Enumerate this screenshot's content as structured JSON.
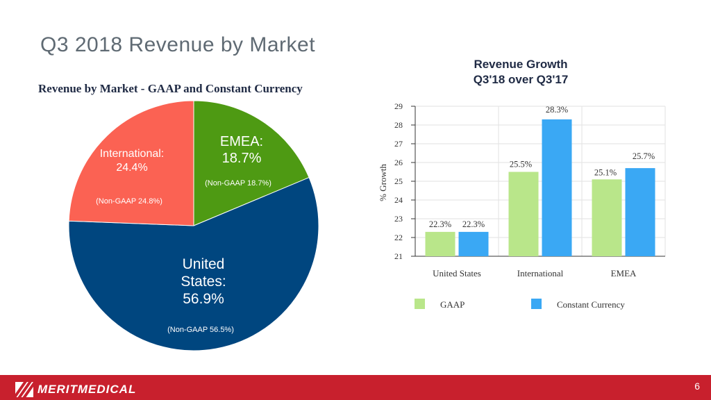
{
  "slide": {
    "title": "Q3 2018 Revenue by Market",
    "page_number": "6",
    "logo_text": "MERITMEDICAL"
  },
  "colors": {
    "united_states": "#00467f",
    "international": "#fb6253",
    "emea": "#4e9a13",
    "gaap": "#b9e68a",
    "constant_currency": "#3aa8f4",
    "footer": "#c8202d"
  },
  "chart_data": [
    {
      "type": "pie",
      "title": "Revenue by Market - GAAP and Constant Currency",
      "slices": [
        {
          "name": "EMEA",
          "value": 18.7,
          "label_line1": "EMEA:",
          "label_line2": "18.7%",
          "note": "(Non-GAAP 18.7%)",
          "color": "#4e9a13"
        },
        {
          "name": "United States",
          "value": 56.9,
          "label_line1": "United",
          "label_line2": "States:",
          "label_line3": "56.9%",
          "note": "(Non-GAAP 56.5%)",
          "color": "#00467f"
        },
        {
          "name": "International",
          "value": 24.4,
          "label_line1": "International:",
          "label_line2": "24.4%",
          "note": "(Non-GAAP 24.8%)",
          "color": "#fb6253"
        }
      ]
    },
    {
      "type": "bar",
      "title_line1": "Revenue Growth",
      "title_line2": "Q3'18 over Q3'17",
      "categories": [
        "United States",
        "International",
        "EMEA"
      ],
      "series": [
        {
          "name": "GAAP",
          "values": [
            22.3,
            25.5,
            25.1
          ],
          "labels": [
            "22.3%",
            "25.5%",
            "25.1%"
          ],
          "color": "#b9e68a"
        },
        {
          "name": "Constant Currency",
          "values": [
            22.3,
            28.3,
            25.7
          ],
          "labels": [
            "22.3%",
            "28.3%",
            "25.7%"
          ],
          "color": "#3aa8f4"
        }
      ],
      "ylabel": "% Growth",
      "ylim": [
        21,
        29
      ],
      "yticks": [
        "21",
        "22",
        "23",
        "24",
        "25",
        "26",
        "27",
        "28",
        "29"
      ],
      "grid": true,
      "legend_position": "bottom"
    }
  ]
}
